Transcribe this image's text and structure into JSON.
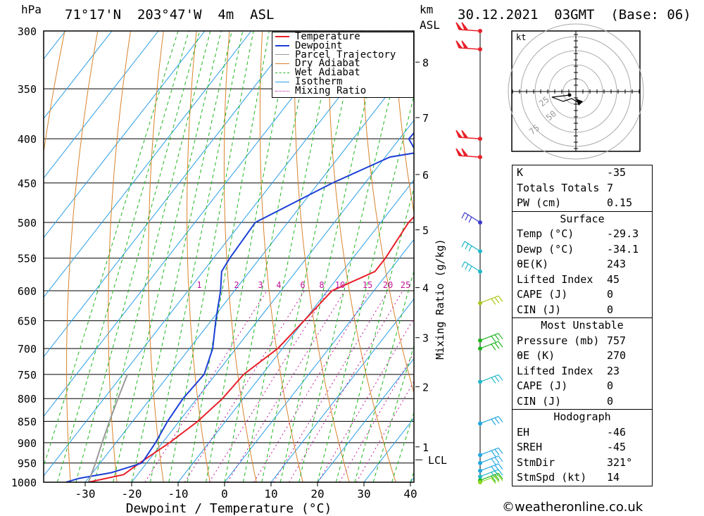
{
  "header": {
    "hpa_label": "hPa",
    "location": "71°17'N  203°47'W  4m  ASL",
    "km_label": "km",
    "asl_label": "ASL",
    "datetime": "30.12.2021  03GMT  (Base: 06)"
  },
  "footer": {
    "credit": "weatheronline.co.uk",
    "copyright": "©"
  },
  "chart_data": {
    "type": "line",
    "title": "",
    "xlabel": "Dewpoint / Temperature (°C)",
    "ylabel": "hPa",
    "xlim": [
      -40,
      40
    ],
    "ylim": [
      1000,
      300
    ],
    "x_ticks": [
      -30,
      -20,
      -10,
      0,
      10,
      20,
      30,
      40
    ],
    "pressure_levels": [
      300,
      350,
      400,
      450,
      500,
      550,
      600,
      650,
      700,
      750,
      800,
      850,
      900,
      950,
      1000
    ],
    "km_ticks": [
      {
        "km": "1",
        "p": 910
      },
      {
        "km": "2",
        "p": 775
      },
      {
        "km": "3",
        "p": 680
      },
      {
        "km": "4",
        "p": 595
      },
      {
        "km": "5",
        "p": 510
      },
      {
        "km": "6",
        "p": 440
      },
      {
        "km": "7",
        "p": 378
      },
      {
        "km": "8",
        "p": 326
      }
    ],
    "lcl": {
      "label": "LCL",
      "p": 942
    },
    "mixing_ratio_label": "Mixing Ratio (g/kg)",
    "mixing_ratio_values": [
      "1",
      "2",
      "3",
      "4",
      "6",
      "8",
      "10",
      "15",
      "20",
      "25"
    ],
    "legend": [
      "Temperature",
      "Dewpoint",
      "Parcel Trajectory",
      "Dry Adiabat",
      "Wet Adiabat",
      "Isotherm",
      "Mixing Ratio"
    ],
    "colors": {
      "temperature": "#e8202a",
      "dewpoint": "#1c3fd6",
      "parcel": "#9a9a9a",
      "dry_adiabat": "#d9822b",
      "wet_adiabat": "#1fb51f",
      "isotherm": "#2a9ee6",
      "mixing_ratio": "#c0149a"
    },
    "series": [
      {
        "name": "Temperature",
        "points": [
          [
            1000,
            -29.3
          ],
          [
            980,
            -23
          ],
          [
            950,
            -21.5
          ],
          [
            900,
            -18.5
          ],
          [
            850,
            -16
          ],
          [
            800,
            -14.5
          ],
          [
            750,
            -14
          ],
          [
            700,
            -11
          ],
          [
            650,
            -10
          ],
          [
            600,
            -9
          ],
          [
            570,
            -3
          ],
          [
            550,
            -3
          ],
          [
            500,
            -4
          ],
          [
            450,
            -2.5
          ],
          [
            430,
            -3
          ],
          [
            400,
            -2.8
          ],
          [
            350,
            -5.5
          ],
          [
            300,
            -8
          ]
        ]
      },
      {
        "name": "Dewpoint",
        "points": [
          [
            1000,
            -34.1
          ],
          [
            990,
            -32
          ],
          [
            975,
            -26
          ],
          [
            960,
            -23
          ],
          [
            950,
            -21
          ],
          [
            900,
            -21.5
          ],
          [
            850,
            -22.5
          ],
          [
            800,
            -23
          ],
          [
            750,
            -22.5
          ],
          [
            700,
            -25
          ],
          [
            650,
            -29
          ],
          [
            600,
            -33
          ],
          [
            570,
            -36
          ],
          [
            550,
            -36.5
          ],
          [
            500,
            -37
          ],
          [
            450,
            -27
          ],
          [
            420,
            -19
          ],
          [
            415,
            -14
          ],
          [
            400,
            -18
          ],
          [
            350,
            -17
          ],
          [
            325,
            -13
          ],
          [
            300,
            -15
          ]
        ]
      },
      {
        "name": "Parcel Trajectory",
        "points": [
          [
            1000,
            -29.3
          ],
          [
            950,
            -31
          ],
          [
            900,
            -33
          ],
          [
            850,
            -35
          ],
          [
            800,
            -37
          ],
          [
            750,
            -39
          ]
        ]
      }
    ]
  },
  "hodograph": {
    "unit": "kt",
    "rings": [
      "25",
      "50",
      "75"
    ]
  },
  "wind_barbs": [
    {
      "p": 300,
      "color": "#e8202a"
    },
    {
      "p": 315,
      "color": "#e8202a"
    },
    {
      "p": 400,
      "color": "#e8202a"
    },
    {
      "p": 420,
      "color": "#e8202a"
    },
    {
      "p": 500,
      "color": "#3a3acc"
    },
    {
      "p": 540,
      "color": "#22b8c8"
    },
    {
      "p": 570,
      "color": "#22b8c8"
    },
    {
      "p": 620,
      "color": "#a8c81c"
    },
    {
      "p": 685,
      "color": "#1fb51f"
    },
    {
      "p": 700,
      "color": "#1fb51f"
    },
    {
      "p": 765,
      "color": "#22b8c8"
    },
    {
      "p": 855,
      "color": "#22a8e0"
    },
    {
      "p": 930,
      "color": "#22a8e0"
    },
    {
      "p": 950,
      "color": "#22a8e0"
    },
    {
      "p": 970,
      "color": "#22a8e0"
    },
    {
      "p": 985,
      "color": "#22b8c8"
    },
    {
      "p": 995,
      "color": "#1fb51f"
    },
    {
      "p": 1000,
      "color": "#8ad81c"
    }
  ],
  "indices": {
    "top": [
      {
        "label": "K",
        "value": "-35"
      },
      {
        "label": "Totals Totals",
        "value": "7"
      },
      {
        "label": "PW (cm)",
        "value": "0.15"
      }
    ],
    "surface_title": "Surface",
    "surface": [
      {
        "label": "Temp (°C)",
        "value": "-29.3"
      },
      {
        "label": "Dewp (°C)",
        "value": "-34.1"
      },
      {
        "label": "θE(K)",
        "value": "243"
      },
      {
        "label": "Lifted Index",
        "value": "45"
      },
      {
        "label": "CAPE (J)",
        "value": "0"
      },
      {
        "label": "CIN (J)",
        "value": "0"
      }
    ],
    "mu_title": "Most Unstable",
    "mu": [
      {
        "label": "Pressure (mb)",
        "value": "757"
      },
      {
        "label": "θE (K)",
        "value": "270"
      },
      {
        "label": "Lifted Index",
        "value": "23"
      },
      {
        "label": "CAPE (J)",
        "value": "0"
      },
      {
        "label": "CIN (J)",
        "value": "0"
      }
    ],
    "hodo_title": "Hodograph",
    "hodo": [
      {
        "label": "EH",
        "value": "-46"
      },
      {
        "label": "SREH",
        "value": "-45"
      },
      {
        "label": "StmDir",
        "value": "321°"
      },
      {
        "label": "StmSpd (kt)",
        "value": "14"
      }
    ]
  }
}
